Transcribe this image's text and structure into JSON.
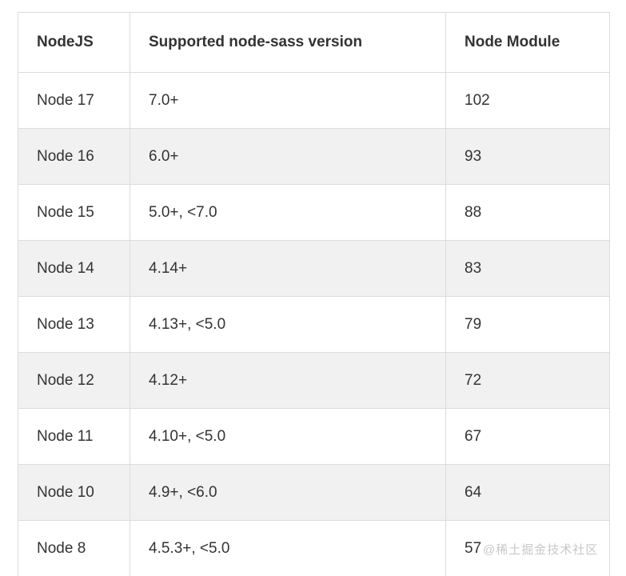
{
  "table": {
    "columns": [
      {
        "label": "NodeJS"
      },
      {
        "label": "Supported node-sass version"
      },
      {
        "label": "Node Module"
      }
    ],
    "row_fields": [
      "nodejs",
      "sass_version",
      "node_module"
    ],
    "rows": [
      {
        "nodejs": "Node 17",
        "sass_version": "7.0+",
        "node_module": "102"
      },
      {
        "nodejs": "Node 16",
        "sass_version": "6.0+",
        "node_module": "93"
      },
      {
        "nodejs": "Node 15",
        "sass_version": "5.0+, <7.0",
        "node_module": "88"
      },
      {
        "nodejs": "Node 14",
        "sass_version": "4.14+",
        "node_module": "83"
      },
      {
        "nodejs": "Node 13",
        "sass_version": "4.13+, <5.0",
        "node_module": "79"
      },
      {
        "nodejs": "Node 12",
        "sass_version": "4.12+",
        "node_module": "72"
      },
      {
        "nodejs": "Node 11",
        "sass_version": "4.10+, <5.0",
        "node_module": "67"
      },
      {
        "nodejs": "Node 10",
        "sass_version": "4.9+, <6.0",
        "node_module": "64"
      },
      {
        "nodejs": "Node 8",
        "sass_version": "4.5.3+, <5.0",
        "node_module": "57"
      }
    ]
  },
  "watermark": {
    "text": "@稀土掘金技术社区"
  },
  "colors": {
    "text": "#333333",
    "border": "#dcdcdc",
    "stripe_row_background": "#f1f1f1",
    "watermark_text": "#c8c8c8",
    "page_background": "#ffffff"
  }
}
